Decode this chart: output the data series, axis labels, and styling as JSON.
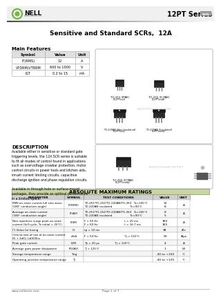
{
  "title_series": "12PT Series",
  "title_sub": "Sensitive and Standard SCRs,  12A",
  "logo_text": "NELL",
  "logo_sub": "SEMICONDUCTOR",
  "main_features_title": "Main Features",
  "features_headers": [
    "Symbol",
    "Value",
    "Unit"
  ],
  "features_rows": [
    [
      "IT(RMS)",
      "12",
      "A"
    ],
    [
      "VТDRM/VТRRM",
      "600 to 1000",
      "V"
    ],
    [
      "IGT",
      "0.2 to 15",
      "mA"
    ]
  ],
  "description_title": "DESCRIPTION",
  "abs_max_title": "ABSOLUTE MAXIMUM RATINGS",
  "abs_headers": [
    "PARAMETER",
    "SYMBOL",
    "TEST CONDITIONS",
    "VALUE",
    "UNIT"
  ],
  "footer_url": "www.nellsemi.com",
  "footer_page": "Page 1 of 7",
  "bg_color": "#ffffff",
  "abs_header_bg": "#c8d89a",
  "green_accent": "#7ab648",
  "rohs_bg": "#888888"
}
